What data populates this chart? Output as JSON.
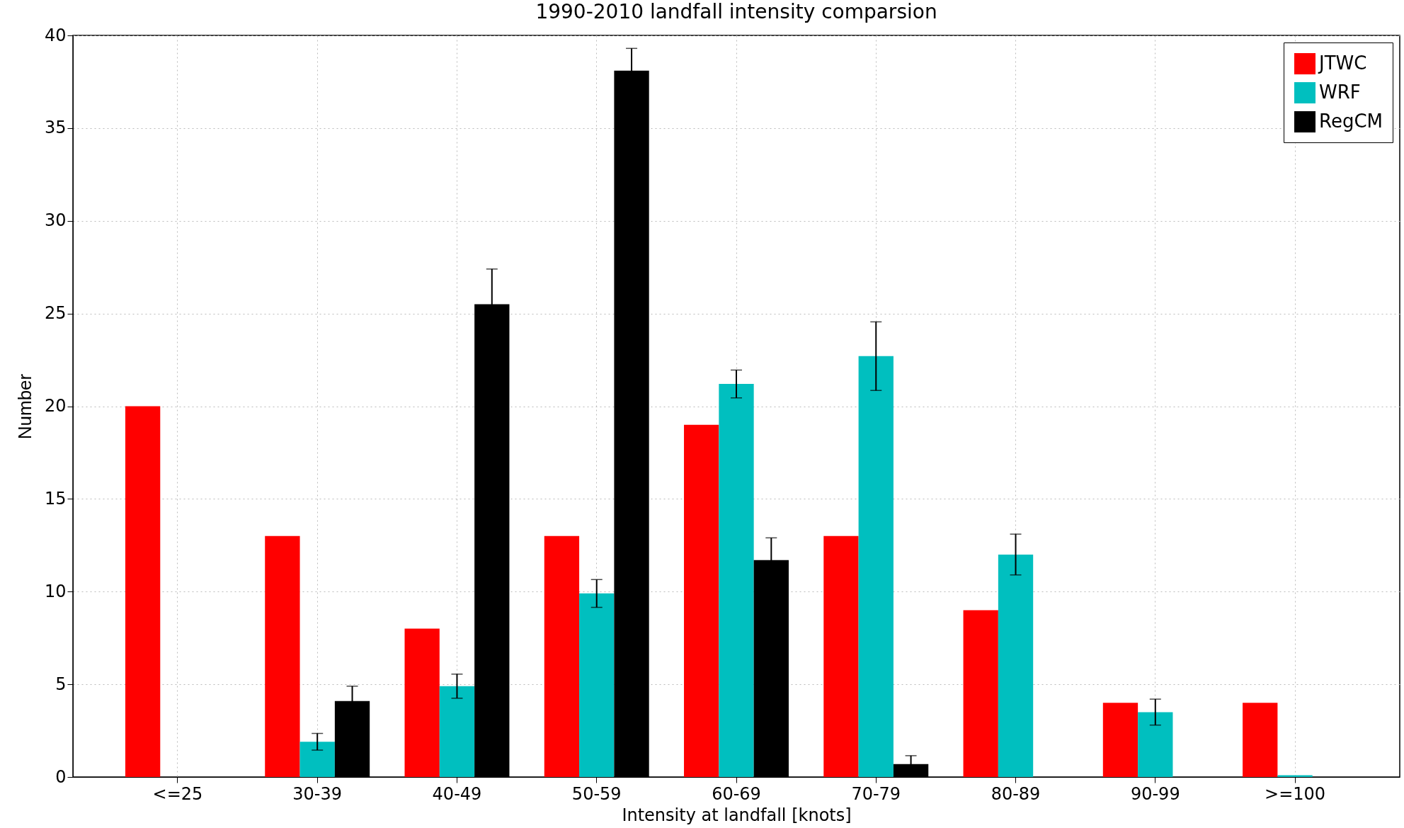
{
  "chart_data": {
    "type": "bar",
    "title": "1990-2010 landfall intensity comparsion",
    "xlabel": "Intensity at landfall [knots]",
    "ylabel": "Number",
    "categories": [
      "<=25",
      "30-39",
      "40-49",
      "50-59",
      "60-69",
      "70-79",
      "80-89",
      "90-99",
      ">=100"
    ],
    "series": [
      {
        "name": "JTWC",
        "color": "#ff0000",
        "values": [
          20,
          13,
          8,
          13,
          19,
          13,
          9,
          4,
          4
        ]
      },
      {
        "name": "WRF",
        "color": "#00bfbf",
        "values": [
          null,
          1.9,
          4.9,
          9.9,
          21.2,
          22.7,
          12.0,
          3.5,
          0.1
        ],
        "errors": [
          null,
          0.45,
          0.65,
          0.75,
          0.75,
          1.85,
          1.1,
          0.7,
          null
        ]
      },
      {
        "name": "RegCM",
        "color": "#000000",
        "values": [
          null,
          4.1,
          25.5,
          38.1,
          11.7,
          0.7,
          null,
          null,
          null
        ],
        "errors": [
          null,
          0.8,
          1.9,
          1.2,
          1.2,
          0.45,
          null,
          null,
          null
        ]
      }
    ],
    "ylim": [
      0,
      40
    ],
    "yticks": [
      0,
      5,
      10,
      15,
      20,
      25,
      30,
      35,
      40
    ],
    "grid": true,
    "legend": "top right"
  }
}
